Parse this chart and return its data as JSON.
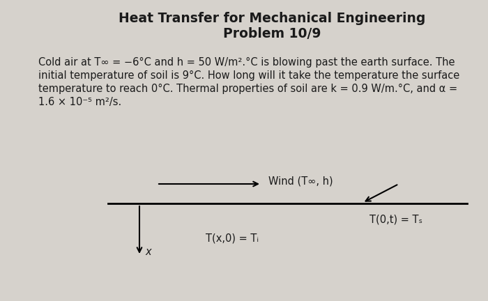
{
  "title_line1": "Heat Transfer for Mechanical Engineering",
  "title_line2": "Problem 10/9",
  "body_line1": "Cold air at T∞ = −6°C and h = 50 W/m².°C is blowing past the earth surface. The",
  "body_line2": "initial temperature of soil is 9°C. How long will it take the temperature the surface",
  "body_line3": "temperature to reach 0°C. Thermal properties of soil are k = 0.9 W/m.°C, and α =",
  "body_line4": "1.6 × 10⁻⁵ m²/s.",
  "bg_color": "#d6d2cc",
  "text_color": "#1a1a1a",
  "title_fontsize": 13.5,
  "body_fontsize": 10.5,
  "diagram_fontsize": 10.5,
  "wind_label": "Wind (T∞, h)",
  "surface_label": "T(0,t) = Tₛ",
  "initial_label": "T(x,0) = Tᵢ",
  "x_label": "x"
}
